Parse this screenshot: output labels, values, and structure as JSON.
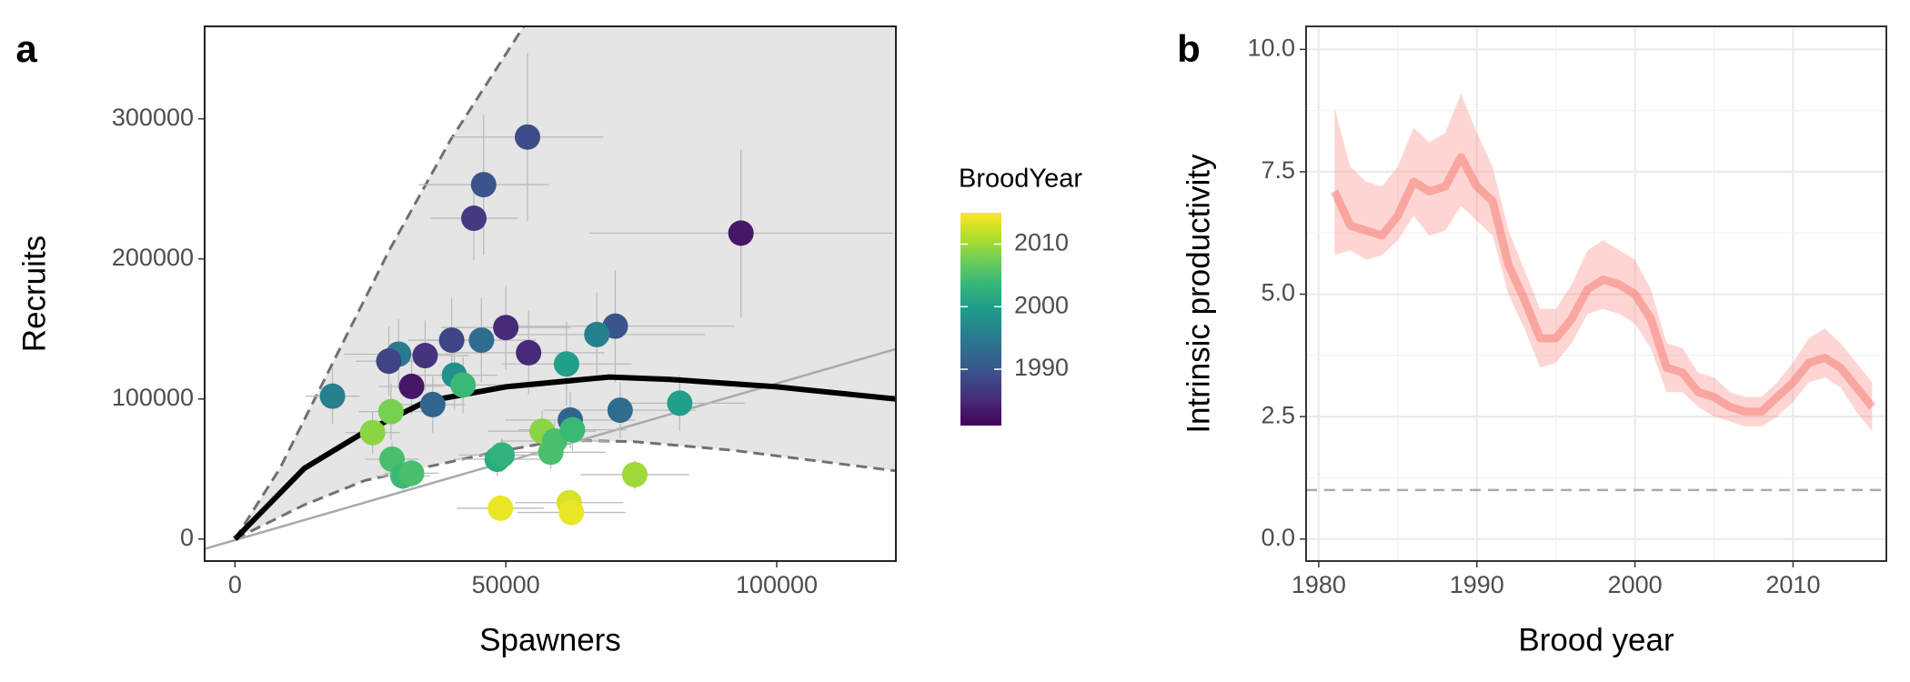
{
  "chart_data": [
    {
      "type": "scatter",
      "panel_label": "a",
      "xlabel": "Spawners",
      "ylabel": "Recruits",
      "xlim": [
        -5600,
        122000
      ],
      "ylim": [
        -15700,
        366000
      ],
      "xticks": [
        0,
        50000,
        100000
      ],
      "yticks": [
        0,
        100000,
        200000,
        300000
      ],
      "legend_title": "BroodYear",
      "colormap": "viridis",
      "colorbar_lim": [
        1981,
        2015
      ],
      "colorbar_ticks": [
        1990,
        2000,
        2010
      ],
      "x": [
        93400,
        54000,
        45900,
        44100,
        70200,
        66800,
        50000,
        45500,
        40000,
        30200,
        35100,
        54200,
        28400,
        32600,
        40500,
        42100,
        36500,
        61200,
        18000,
        28800,
        25400,
        61900,
        71100,
        82100,
        56700,
        59000,
        62300,
        58300,
        48400,
        49300,
        29000,
        31000,
        32600,
        73800,
        49000,
        61700,
        62100
      ],
      "y": [
        218400,
        287000,
        253000,
        229000,
        152000,
        146000,
        151000,
        142000,
        142000,
        132000,
        131000,
        133000,
        127000,
        109000,
        117000,
        110000,
        96000,
        125000,
        102000,
        91000,
        76000,
        85000,
        92000,
        97000,
        77000,
        70000,
        78000,
        62000,
        57000,
        60000,
        57000,
        45000,
        47000,
        46000,
        22000,
        26000,
        19000
      ],
      "color_values": [
        1983,
        1989,
        1990,
        1987,
        1990,
        1996,
        1985,
        1993,
        1988,
        1995,
        1986,
        1985,
        1988,
        1983,
        1998,
        2004,
        1992,
        2000,
        1996,
        2008,
        2009,
        1992,
        1993,
        2000,
        2009,
        2005,
        2004,
        2005,
        2002,
        2003,
        2005,
        2004,
        2005,
        2010,
        2014,
        2013,
        2014
      ],
      "xerr": [
        28000,
        14000,
        12000,
        8000,
        22000,
        20000,
        12000,
        10000,
        8000,
        10000,
        8000,
        14000,
        6000,
        6000,
        8000,
        8000,
        6000,
        12000,
        5000,
        6000,
        5000,
        12000,
        14000,
        12000,
        10000,
        10000,
        10000,
        10000,
        8000,
        8000,
        5000,
        5000,
        5000,
        10000,
        8000,
        10000,
        10000
      ],
      "yerr": [
        60000,
        60000,
        50000,
        30000,
        40000,
        30000,
        30000,
        30000,
        30000,
        25000,
        25000,
        30000,
        25000,
        20000,
        25000,
        20000,
        20000,
        30000,
        20000,
        20000,
        15000,
        20000,
        20000,
        20000,
        15000,
        15000,
        15000,
        12000,
        12000,
        12000,
        12000,
        10000,
        10000,
        10000,
        8000,
        8000,
        6000
      ],
      "errorbar_color": "#bbbbbb",
      "band_color": "#e5e5e5",
      "band_lower": {
        "x": [
          0,
          12800,
          24000,
          46600,
          60000,
          73600,
          91600,
          122000
        ],
        "y": [
          0,
          24400,
          41800,
          60900,
          70500,
          69600,
          63500,
          48700
        ]
      },
      "band_upper": {
        "x": [
          0,
          8300,
          17300,
          28600,
          39800,
          53300
        ],
        "y": [
          0,
          50500,
          120000,
          207000,
          285000,
          366000
        ]
      },
      "bound_color": "#707070",
      "median_curve": {
        "x": [
          0,
          12800,
          24000,
          35300,
          50000,
          69100,
          80300,
          100000,
          122000
        ],
        "y": [
          0,
          50500,
          76600,
          98300,
          108700,
          115700,
          114000,
          108700,
          100000
        ],
        "color": "#000000"
      },
      "replacement_line": {
        "x": [
          -5600,
          122000
        ],
        "y": [
          -7000,
          135700
        ],
        "color": "#aaaaaa"
      }
    },
    {
      "type": "line",
      "panel_label": "b",
      "xlabel": "Brood year",
      "ylabel": "Intrinsic productivity",
      "xlim": [
        1979.2,
        2015.9
      ],
      "ylim": [
        -0.45,
        10.47
      ],
      "xticks": [
        1980,
        1990,
        2000,
        2010
      ],
      "yticks": [
        {
          "value": 0,
          "label": "0.0"
        },
        2.5,
        {
          "value": 5,
          "label": "5.0"
        },
        7.5,
        {
          "value": 10,
          "label": "10.0"
        }
      ],
      "grid": true,
      "color": "#f8766d",
      "x": [
        1981,
        1982,
        1983,
        1984,
        1985,
        1986,
        1987,
        1988,
        1989,
        1990,
        1991,
        1992,
        1993,
        1994,
        1995,
        1996,
        1997,
        1998,
        1999,
        2000,
        2001,
        2002,
        2003,
        2004,
        2005,
        2006,
        2007,
        2008,
        2009,
        2010,
        2011,
        2012,
        2013,
        2014,
        2015
      ],
      "values": [
        7.1,
        6.4,
        6.3,
        6.2,
        6.6,
        7.3,
        7.1,
        7.2,
        7.8,
        7.2,
        6.9,
        5.6,
        4.9,
        4.1,
        4.1,
        4.5,
        5.1,
        5.3,
        5.2,
        5.0,
        4.5,
        3.5,
        3.4,
        3.0,
        2.9,
        2.7,
        2.6,
        2.6,
        2.9,
        3.2,
        3.6,
        3.7,
        3.5,
        3.1,
        2.7
      ],
      "upper": [
        8.8,
        7.6,
        7.3,
        7.2,
        7.6,
        8.4,
        8.1,
        8.3,
        9.1,
        8.3,
        7.6,
        6.3,
        5.5,
        4.7,
        4.7,
        5.2,
        5.9,
        6.1,
        5.9,
        5.7,
        5.1,
        4.0,
        3.9,
        3.4,
        3.3,
        3.0,
        2.9,
        2.9,
        3.2,
        3.6,
        4.1,
        4.3,
        4.0,
        3.6,
        3.2
      ],
      "lower": [
        5.8,
        5.9,
        5.7,
        5.8,
        6.1,
        6.6,
        6.2,
        6.3,
        6.8,
        6.5,
        6.2,
        5.0,
        4.3,
        3.5,
        3.6,
        4.0,
        4.6,
        4.7,
        4.6,
        4.4,
        3.9,
        3.0,
        3.0,
        2.7,
        2.5,
        2.4,
        2.3,
        2.3,
        2.5,
        2.8,
        3.2,
        3.3,
        3.1,
        2.6,
        2.2
      ],
      "reference_line": 1,
      "reference_color": "#aaaaaa"
    }
  ]
}
